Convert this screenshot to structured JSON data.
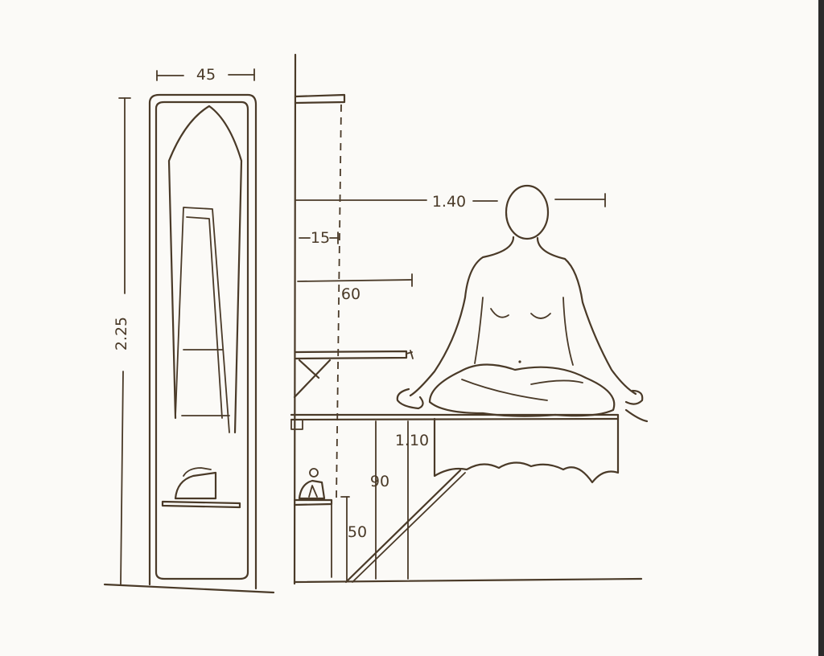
{
  "dimensions": {
    "wardrobe_width": "45",
    "wardrobe_height": "2.25",
    "board_reach": "1.40",
    "shelf_depth": "15",
    "board_length": "60",
    "table_height": "1.10",
    "board_height": "90",
    "shelf_height": "50"
  },
  "colors": {
    "ink": "#4a3a28",
    "paper": "#fbfaf7"
  }
}
